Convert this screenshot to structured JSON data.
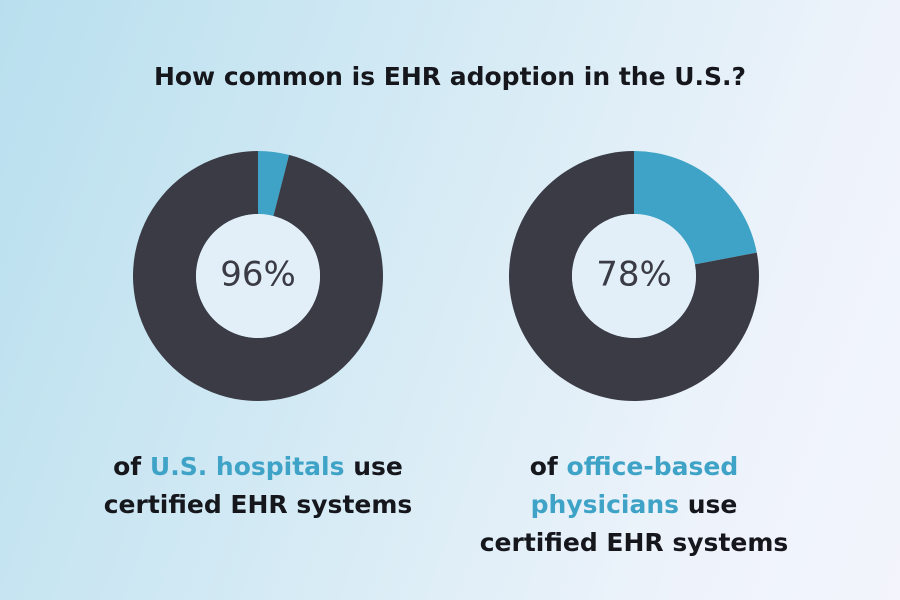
{
  "title": "How common is EHR adoption in the U.S.?",
  "chart_data": [
    {
      "type": "donut",
      "values": [
        4,
        96
      ],
      "value_labels": [
        null,
        "96%"
      ],
      "colors": [
        "#3ea3c6",
        "#3a3b45"
      ],
      "caption": [
        "of",
        "U.S. hospitals",
        "use certified EHR systems"
      ],
      "caption_highlight": 1
    },
    {
      "type": "donut",
      "values": [
        22,
        78
      ],
      "value_labels": [
        null,
        "78%"
      ],
      "colors": [
        "#3ea3c6",
        "#3a3b45"
      ],
      "caption": [
        "of",
        "office-based physicians",
        "use certified EHR systems"
      ],
      "caption_highlight": 1
    }
  ]
}
